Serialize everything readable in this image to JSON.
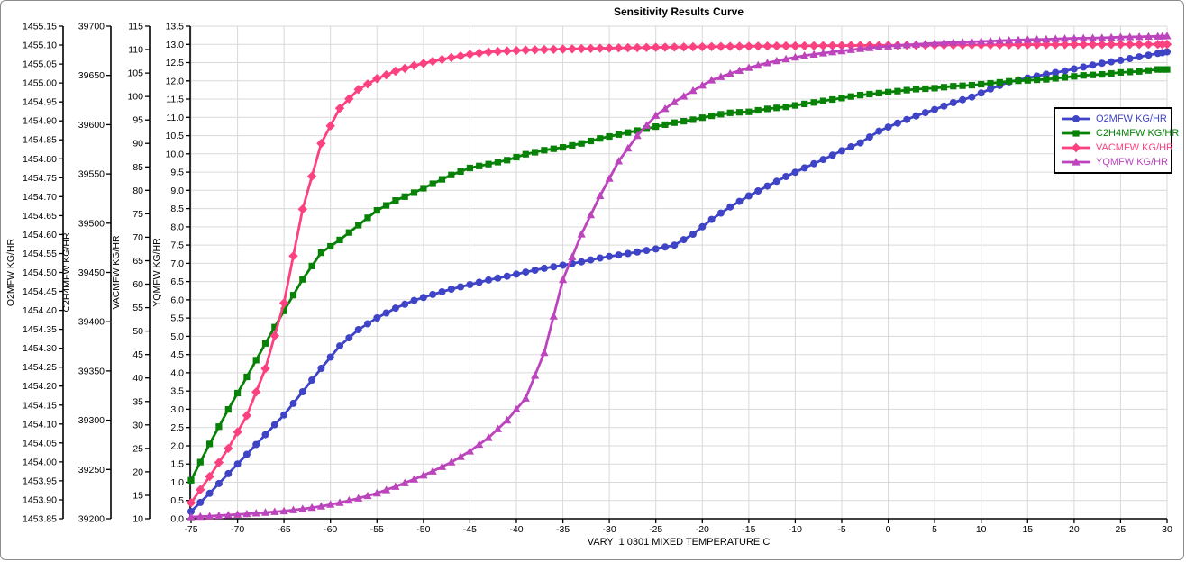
{
  "chart_data": {
    "type": "line",
    "title": "Sensitivity Results Curve",
    "xlabel": "VARY  1 0301 MIXED TEMPERATURE C",
    "grid": true,
    "legend_position": "inside-right",
    "colors": {
      "gridline": "#d9d9d9",
      "axis": "#000000",
      "background": "#ffffff",
      "window_border": "#8c8c8c"
    },
    "x_axis": {
      "min": -75,
      "max": 30,
      "step": 5,
      "tick_labels": [
        "-75",
        "-70",
        "-65",
        "-60",
        "-55",
        "-50",
        "-45",
        "-40",
        "-35",
        "-30",
        "-25",
        "-20",
        "-15",
        "-10",
        "-5",
        "0",
        "5",
        "10",
        "15",
        "20",
        "25",
        "30"
      ]
    },
    "y_axes": [
      {
        "id": "O2MFW",
        "title": "O2MFW KG/HR",
        "min": 1453.85,
        "max": 1455.15,
        "step": 0.05,
        "tick_labels": [
          "1453.85",
          "1453.90",
          "1453.95",
          "1454.00",
          "1454.05",
          "1454.10",
          "1454.15",
          "1454.20",
          "1454.25",
          "1454.30",
          "1454.35",
          "1454.40",
          "1454.45",
          "1454.50",
          "1454.55",
          "1454.60",
          "1454.65",
          "1454.70",
          "1454.75",
          "1454.80",
          "1454.85",
          "1454.90",
          "1454.95",
          "1455.00",
          "1455.05",
          "1455.10",
          "1455.15"
        ]
      },
      {
        "id": "C2H4MFW",
        "title": "C2H4MFW KG/HR",
        "min": 39200,
        "max": 39700,
        "step": 50,
        "tick_labels": [
          "39200",
          "39250",
          "39300",
          "39350",
          "39400",
          "39450",
          "39500",
          "39550",
          "39600",
          "39650",
          "39700"
        ]
      },
      {
        "id": "VACMFW",
        "title": "VACMFW KG/HR",
        "min": 10,
        "max": 115,
        "step": 5,
        "tick_labels": [
          "10",
          "15",
          "20",
          "25",
          "30",
          "35",
          "40",
          "45",
          "50",
          "55",
          "60",
          "65",
          "70",
          "75",
          "80",
          "85",
          "90",
          "95",
          "100",
          "105",
          "110",
          "115"
        ]
      },
      {
        "id": "YQMFW",
        "title": "YQMFW KG/HR",
        "min": 0,
        "max": 13.5,
        "step": 0.5,
        "tick_labels": [
          "0.0",
          "0.5",
          "1.0",
          "1.5",
          "2.0",
          "2.5",
          "3.0",
          "3.5",
          "4.0",
          "4.5",
          "5.0",
          "5.5",
          "6.0",
          "6.5",
          "7.0",
          "7.5",
          "8.0",
          "8.5",
          "9.0",
          "9.5",
          "10.0",
          "10.5",
          "11.0",
          "11.5",
          "12.0",
          "12.5",
          "13.0",
          "13.5"
        ]
      }
    ],
    "x": [
      -75,
      -73,
      -71,
      -69,
      -67,
      -65,
      -63,
      -61,
      -59,
      -57,
      -55,
      -53,
      -51,
      -49,
      -47,
      -45,
      -43,
      -41,
      -39,
      -37,
      -35,
      -33,
      -31,
      -29,
      -27,
      -25,
      -23,
      -21,
      -19,
      -17,
      -15,
      -13,
      -11,
      -9,
      -7,
      -5,
      -3,
      -1,
      1,
      3,
      5,
      7,
      9,
      11,
      13,
      15,
      17,
      19,
      21,
      23,
      25,
      27,
      29,
      30
    ],
    "series": [
      {
        "name": "O2MFW KG/HR",
        "axis": 0,
        "color": "#3f43c6",
        "marker": "circle",
        "values": [
          1453.869,
          1453.917,
          1453.969,
          1454.02,
          1454.072,
          1454.124,
          1454.185,
          1454.247,
          1454.306,
          1454.349,
          1454.38,
          1454.406,
          1454.426,
          1454.442,
          1454.456,
          1454.468,
          1454.48,
          1454.49,
          1454.501,
          1454.511,
          1454.519,
          1454.528,
          1454.538,
          1454.546,
          1454.554,
          1454.562,
          1454.572,
          1454.601,
          1454.64,
          1454.673,
          1454.702,
          1454.728,
          1454.753,
          1454.776,
          1454.798,
          1454.821,
          1454.842,
          1454.873,
          1454.894,
          1454.913,
          1454.93,
          1454.948,
          1454.963,
          1454.984,
          1455.003,
          1455.013,
          1455.023,
          1455.032,
          1455.042,
          1455.052,
          1455.06,
          1455.069,
          1455.078,
          1455.082
        ]
      },
      {
        "name": "C2H4MFW KG/HR",
        "axis": 1,
        "color": "#078207",
        "marker": "square",
        "values": [
          39239,
          39276,
          39311,
          39344,
          39378,
          39411,
          39443,
          39470,
          39483,
          39498,
          39513,
          39523,
          39531,
          39540,
          39549,
          39556,
          39560,
          39564,
          39570,
          39574,
          39577,
          39581,
          39586,
          39590,
          39594,
          39598,
          39602,
          39605,
          39609,
          39612,
          39613,
          39616,
          39618,
          39621,
          39624,
          39627,
          39630,
          39632,
          39634,
          39636,
          39637,
          39639,
          39640,
          39642,
          39644,
          39645,
          39646,
          39648,
          39650,
          39651,
          39653,
          39654,
          39656,
          39656
        ]
      },
      {
        "name": "VACMFW KG/HR",
        "axis": 2,
        "color": "#fb4180",
        "marker": "diamond",
        "values": [
          13.4,
          19.0,
          25.0,
          32.0,
          42.0,
          56.0,
          76.0,
          90.0,
          97.5,
          101.5,
          103.8,
          105.4,
          106.6,
          107.5,
          108.3,
          109.0,
          109.5,
          109.7,
          109.9,
          110.0,
          110.1,
          110.2,
          110.28,
          110.35,
          110.42,
          110.48,
          110.53,
          110.58,
          110.62,
          110.66,
          110.7,
          110.74,
          110.77,
          110.8,
          110.83,
          110.86,
          110.88,
          110.9,
          110.92,
          110.94,
          110.96,
          110.98,
          111.0,
          111.01,
          111.03,
          111.04,
          111.06,
          111.07,
          111.08,
          111.09,
          111.1,
          111.11,
          111.12,
          111.12
        ]
      },
      {
        "name": "YQMFW KG/HR",
        "axis": 3,
        "color": "#bc44bc",
        "marker": "triangle",
        "values": [
          0.05,
          0.07,
          0.1,
          0.13,
          0.17,
          0.21,
          0.27,
          0.34,
          0.44,
          0.56,
          0.7,
          0.88,
          1.08,
          1.3,
          1.55,
          1.85,
          2.22,
          2.7,
          3.3,
          4.55,
          6.55,
          7.8,
          8.85,
          9.8,
          10.5,
          11.05,
          11.42,
          11.73,
          12.02,
          12.2,
          12.36,
          12.49,
          12.6,
          12.69,
          12.76,
          12.82,
          12.88,
          12.93,
          12.97,
          13.0,
          13.03,
          13.05,
          13.07,
          13.09,
          13.11,
          13.13,
          13.14,
          13.16,
          13.17,
          13.18,
          13.2,
          13.21,
          13.22,
          13.23
        ]
      }
    ]
  }
}
